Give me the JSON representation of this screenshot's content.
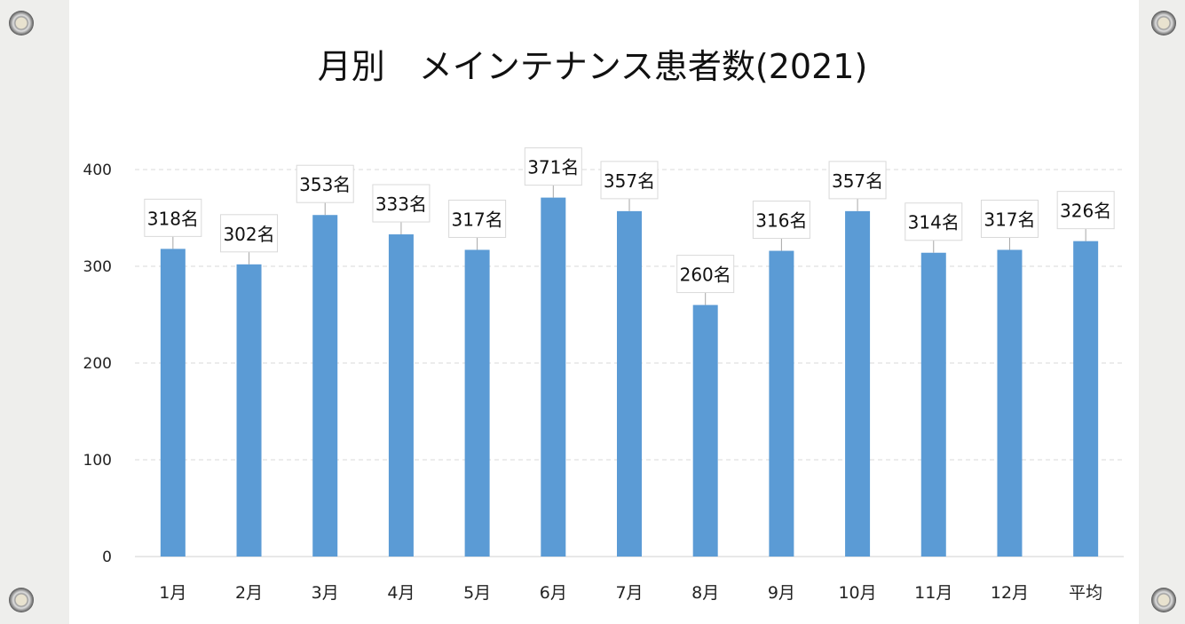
{
  "chart_data": {
    "type": "bar",
    "title": "月別　メインテナンス患者数(2021)",
    "categories": [
      "1月",
      "2月",
      "3月",
      "4月",
      "5月",
      "6月",
      "7月",
      "8月",
      "9月",
      "10月",
      "11月",
      "12月",
      "平均"
    ],
    "values": [
      318,
      302,
      353,
      333,
      317,
      371,
      357,
      260,
      316,
      357,
      314,
      317,
      326
    ],
    "data_labels": [
      "318名",
      "302名",
      "353名",
      "333名",
      "317名",
      "371名",
      "357名",
      "260名",
      "316名",
      "357名",
      "314名",
      "317名",
      "326名"
    ],
    "xlabel": "",
    "ylabel": "",
    "ylim": [
      0,
      400
    ],
    "yticks": [
      "0",
      "100",
      "200",
      "300",
      "400"
    ],
    "grid": true,
    "legend": "none",
    "bar_color": "#5b9bd5"
  }
}
